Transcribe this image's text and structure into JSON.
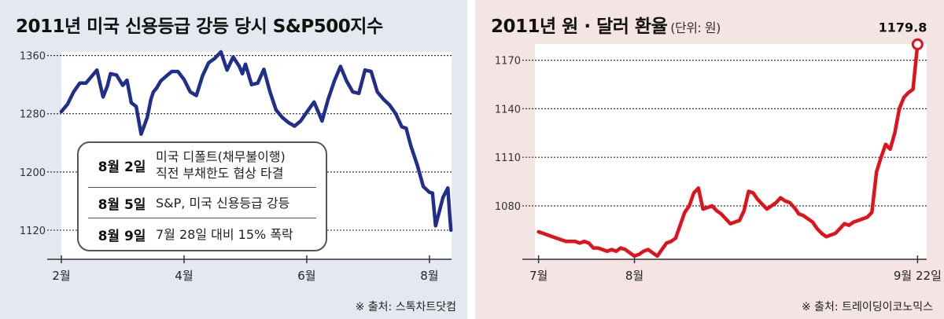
{
  "chart_data": [
    {
      "type": "line",
      "title": "2011년 미국 신용등급 강등 당시 S&P500지수",
      "source": "※ 출처: 스톡차트닷컴",
      "x_ticks": [
        "2월",
        "4월",
        "6월",
        "8월"
      ],
      "x_tick_values": [
        0,
        2,
        4,
        6
      ],
      "x_range": [
        0,
        6.36
      ],
      "y_ticks": [
        "1360",
        "1280",
        "1200",
        "1120"
      ],
      "y_tick_values": [
        1360,
        1280,
        1200,
        1120
      ],
      "ylim": [
        1080,
        1365
      ],
      "color": "#1f2f8a",
      "series": [
        {
          "name": "S&P500",
          "x": [
            0,
            0.1,
            0.2,
            0.3,
            0.4,
            0.5,
            0.58,
            0.68,
            0.75,
            0.8,
            0.9,
            1,
            1.07,
            1.14,
            1.22,
            1.3,
            1.4,
            1.46,
            1.5,
            1.55,
            1.62,
            1.7,
            1.8,
            1.9,
            2,
            2.1,
            2.2,
            2.3,
            2.4,
            2.5,
            2.6,
            2.7,
            2.8,
            2.9,
            2.95,
            3,
            3.1,
            3.2,
            3.3,
            3.4,
            3.5,
            3.6,
            3.7,
            3.8,
            3.9,
            4,
            4.05,
            4.12,
            4.25,
            4.35,
            4.45,
            4.55,
            4.65,
            4.75,
            4.85,
            4.95,
            5.05,
            5.15,
            5.25,
            5.35,
            5.45,
            5.55,
            5.62,
            5.7,
            5.8,
            5.9,
            6,
            6.05,
            6.1,
            6.15,
            6.22,
            6.3,
            6.33,
            6.35
          ],
          "y": [
            1283,
            1293,
            1310,
            1322,
            1322,
            1332,
            1340,
            1303,
            1318,
            1335,
            1333,
            1319,
            1326,
            1295,
            1290,
            1252,
            1275,
            1300,
            1310,
            1315,
            1325,
            1331,
            1338,
            1338,
            1327,
            1310,
            1305,
            1332,
            1350,
            1356,
            1365,
            1340,
            1358,
            1345,
            1335,
            1348,
            1320,
            1322,
            1341,
            1310,
            1285,
            1275,
            1268,
            1263,
            1270,
            1282,
            1288,
            1296,
            1270,
            1300,
            1325,
            1345,
            1325,
            1310,
            1308,
            1340,
            1338,
            1310,
            1300,
            1292,
            1280,
            1262,
            1260,
            1235,
            1210,
            1180,
            1172,
            1171,
            1126,
            1142,
            1165,
            1178,
            1140,
            1120
          ]
        }
      ],
      "annotations": [
        {
          "date": "8월 2일",
          "text_line1": "미국 디폴트(채무불이행)",
          "text_line2": "직전 부채한도 협상 타결"
        },
        {
          "date": "8월 5일",
          "text_line1": "S&P, 미국 신용등급 강등"
        },
        {
          "date": "8월 9일",
          "text_line1": "7월 28일 대비 15% 폭락"
        }
      ]
    },
    {
      "type": "line",
      "title": "2011년 원 · 달러 환율",
      "unit": "(단위: 원)",
      "source": "※ 출처: 트레이딩이코노믹스",
      "x_ticks": [
        "7월",
        "8월",
        "9월 22일"
      ],
      "x_tick_values": [
        0,
        21,
        83
      ],
      "x_range": [
        -0.8,
        85
      ],
      "y_ticks": [
        "1170",
        "1140",
        "1110",
        "1080"
      ],
      "y_tick_values": [
        1170,
        1140,
        1110,
        1080
      ],
      "ylim": [
        1047,
        1180
      ],
      "peak_label": "1179.8",
      "color": "#e0121b",
      "series": [
        {
          "name": "원·달러 환율",
          "x": [
            0,
            1,
            2,
            3,
            4,
            5,
            6,
            7,
            8,
            9,
            10,
            11,
            12,
            13,
            14,
            15,
            16,
            17,
            18,
            19,
            20,
            21,
            22,
            23,
            24,
            25,
            26,
            27,
            28,
            29,
            30,
            31,
            32,
            33,
            34,
            35,
            36,
            37,
            38,
            39,
            40,
            41,
            42,
            43,
            44,
            45,
            46,
            47,
            48,
            49,
            50,
            51,
            52,
            53,
            54,
            55,
            56,
            57,
            58,
            59,
            60,
            61,
            62,
            63,
            64,
            65,
            66,
            67,
            68,
            69,
            70,
            71,
            72,
            73,
            74,
            75,
            76,
            77,
            78,
            79,
            80,
            81,
            82,
            83
          ],
          "y": [
            1064,
            1063,
            1062,
            1061,
            1060,
            1059,
            1058,
            1058,
            1058,
            1057,
            1058,
            1057,
            1054,
            1054,
            1053,
            1052,
            1053,
            1052,
            1054,
            1053,
            1051,
            1049,
            1050,
            1052,
            1053,
            1051,
            1049,
            1053,
            1057,
            1058,
            1060,
            1068,
            1076,
            1080,
            1088,
            1091,
            1078,
            1079,
            1080,
            1077,
            1075,
            1072,
            1069,
            1070,
            1071,
            1077,
            1089,
            1088,
            1084,
            1081,
            1078,
            1080,
            1082,
            1085,
            1083,
            1082,
            1079,
            1075,
            1074,
            1072,
            1070,
            1066,
            1063,
            1061,
            1062,
            1063,
            1066,
            1069,
            1068,
            1070,
            1071,
            1072,
            1073,
            1076,
            1101,
            1110,
            1118,
            1115,
            1125,
            1140,
            1147,
            1150,
            1152,
            1179.8
          ]
        }
      ]
    }
  ]
}
